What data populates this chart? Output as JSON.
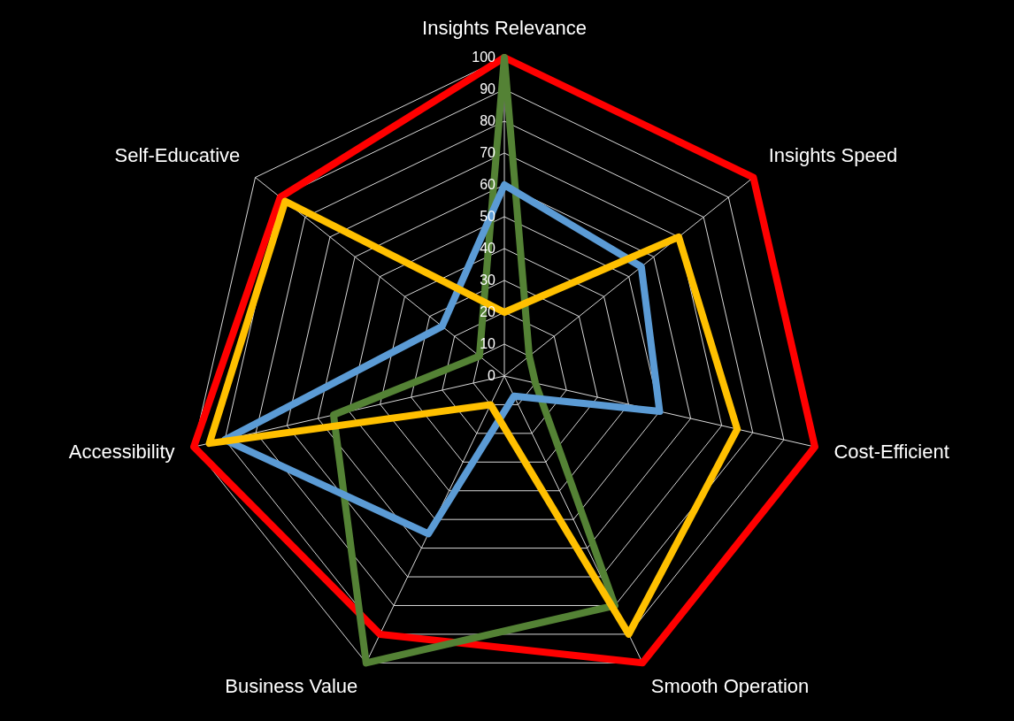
{
  "chart_data": {
    "type": "radar",
    "categories": [
      "Insights Relevance",
      "Insights Speed",
      "Cost-Efficient",
      "Smooth Operation",
      "Business Value",
      "Accessibility",
      "Self-Educative"
    ],
    "series": [
      {
        "color": "#ff0000",
        "values": [
          100,
          100,
          100,
          100,
          90,
          100,
          90
        ]
      },
      {
        "color": "#548235",
        "values": [
          100,
          10,
          10,
          80,
          100,
          55,
          10
        ]
      },
      {
        "color": "#5b9bd5",
        "values": [
          60,
          55,
          50,
          7,
          55,
          90,
          25
        ]
      },
      {
        "color": "#ffc000",
        "values": [
          20,
          70,
          75,
          90,
          10,
          95,
          88
        ]
      }
    ],
    "ylim": [
      0,
      100
    ],
    "yticks": [
      0,
      10,
      20,
      30,
      40,
      50,
      60,
      70,
      80,
      90,
      100
    ],
    "grid": true,
    "marker": "none",
    "line_style": "solid"
  }
}
